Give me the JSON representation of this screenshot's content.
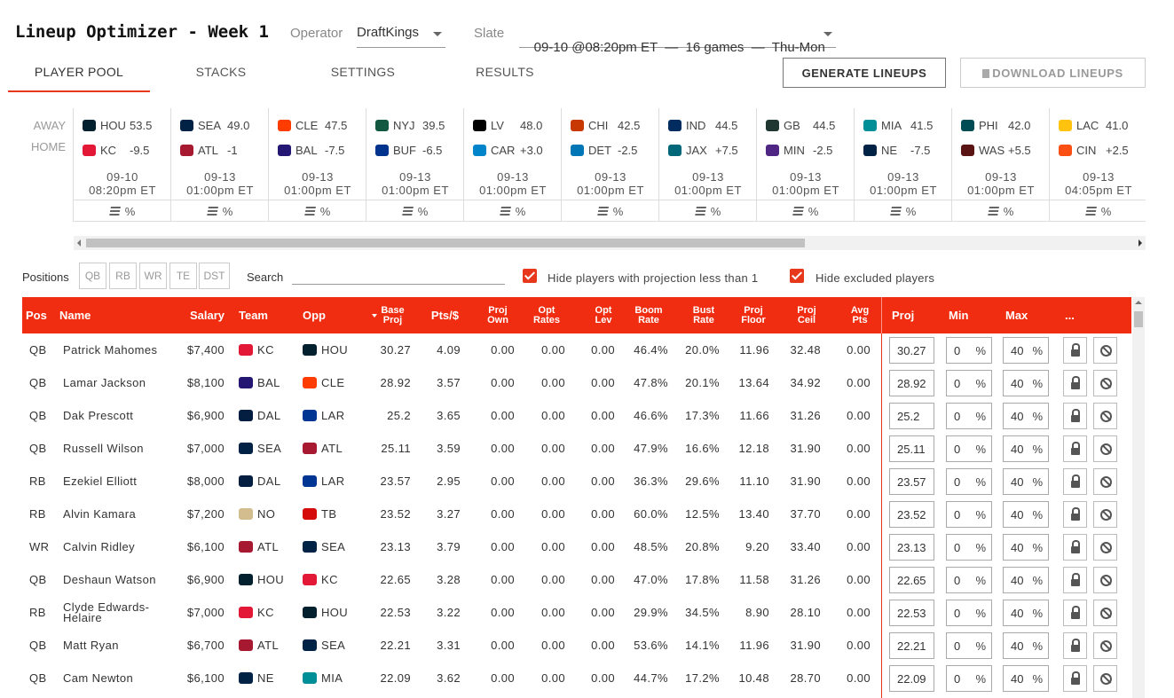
{
  "header": {
    "title": "Lineup Optimizer - Week 1",
    "operator_label": "Operator",
    "operator_value": "DraftKings",
    "slate_label": "Slate",
    "slate_value": "09-10 @08:20pm ET  —  16 games  —  Thu-Mon"
  },
  "tabs": [
    {
      "label": "PLAYER POOL",
      "active": true
    },
    {
      "label": "STACKS"
    },
    {
      "label": "SETTINGS"
    },
    {
      "label": "RESULTS"
    }
  ],
  "actions": {
    "generate": "GENERATE LINEUPS",
    "download": "DOWNLOAD LINEUPS"
  },
  "games_strip": {
    "away_label": "AWAY",
    "home_label": "HOME",
    "games": [
      {
        "away": "HOU",
        "away_val": "53.5",
        "away_color": "#03202f",
        "home": "KC",
        "home_val": "-9.5",
        "home_color": "#e31837",
        "date": "09-10",
        "time": "08:20pm ET",
        "foot": "%"
      },
      {
        "away": "SEA",
        "away_val": "49.0",
        "away_color": "#002244",
        "home": "ATL",
        "home_val": "-1",
        "home_color": "#a71930",
        "date": "09-13",
        "time": "01:00pm ET",
        "foot": "%"
      },
      {
        "away": "CLE",
        "away_val": "47.5",
        "away_color": "#ff3c00",
        "home": "BAL",
        "home_val": "-7.5",
        "home_color": "#241773",
        "date": "09-13",
        "time": "01:00pm ET",
        "foot": "%"
      },
      {
        "away": "NYJ",
        "away_val": "39.5",
        "away_color": "#125740",
        "home": "BUF",
        "home_val": "-6.5",
        "home_color": "#00338d",
        "date": "09-13",
        "time": "01:00pm ET",
        "foot": "%"
      },
      {
        "away": "LV",
        "away_val": "48.0",
        "away_color": "#000000",
        "home": "CAR",
        "home_val": "+3.0",
        "home_color": "#0085ca",
        "date": "09-13",
        "time": "01:00pm ET",
        "foot": "%"
      },
      {
        "away": "CHI",
        "away_val": "42.5",
        "away_color": "#c83803",
        "home": "DET",
        "home_val": "-2.5",
        "home_color": "#0076b6",
        "date": "09-13",
        "time": "01:00pm ET",
        "foot": "%"
      },
      {
        "away": "IND",
        "away_val": "44.5",
        "away_color": "#002c5f",
        "home": "JAX",
        "home_val": "+7.5",
        "home_color": "#006778",
        "date": "09-13",
        "time": "01:00pm ET",
        "foot": "%"
      },
      {
        "away": "GB",
        "away_val": "44.5",
        "away_color": "#203731",
        "home": "MIN",
        "home_val": "-2.5",
        "home_color": "#4f2683",
        "date": "09-13",
        "time": "01:00pm ET",
        "foot": "%"
      },
      {
        "away": "MIA",
        "away_val": "41.5",
        "away_color": "#008e97",
        "home": "NE",
        "home_val": "-7.5",
        "home_color": "#002244",
        "date": "09-13",
        "time": "01:00pm ET",
        "foot": "%"
      },
      {
        "away": "PHI",
        "away_val": "42.0",
        "away_color": "#004c54",
        "home": "WAS",
        "home_val": "+5.5",
        "home_color": "#5a1414",
        "date": "09-13",
        "time": "01:00pm ET",
        "foot": "%"
      },
      {
        "away": "LAC",
        "away_val": "41.0",
        "away_color": "#ffc20e",
        "home": "CIN",
        "home_val": "+2.5",
        "home_color": "#fb4f14",
        "date": "09-13",
        "time": "04:05pm ET",
        "foot": "%"
      }
    ]
  },
  "filters": {
    "positions_label": "Positions",
    "positions": [
      "QB",
      "RB",
      "WR",
      "TE",
      "DST"
    ],
    "search_label": "Search",
    "search_value": "",
    "hide_low_proj_label": "Hide players with projection less than 1",
    "hide_excluded_label": "Hide excluded players"
  },
  "table": {
    "columns": {
      "pos": "Pos",
      "name": "Name",
      "salary": "Salary",
      "team": "Team",
      "opp": "Opp",
      "base_proj": "Base Proj",
      "pts_per_dollar": "Pts/$",
      "proj_own": "Proj Own",
      "opt_rates": "Opt Rates",
      "opt_lev": "Opt Lev",
      "boom_rate": "Boom Rate",
      "bust_rate": "Bust Rate",
      "proj_floor": "Proj Floor",
      "proj_ceil": "Proj Ceil",
      "avg_pts": "Avg Pts",
      "proj": "Proj",
      "min": "Min",
      "max": "Max",
      "more": "..."
    },
    "rows": [
      {
        "pos": "QB",
        "name": "Patrick Mahomes",
        "salary": "$7,400",
        "team": "KC",
        "team_color": "#e31837",
        "opp": "HOU",
        "opp_color": "#03202f",
        "base_proj": "30.27",
        "pts": "4.09",
        "own": "0.00",
        "rates": "0.00",
        "lev": "0.00",
        "boom": "46.4%",
        "bust": "20.0%",
        "floor": "11.96",
        "ceil": "32.48",
        "avg": "0.00",
        "proj": "30.27",
        "min": "0",
        "max": "40"
      },
      {
        "pos": "QB",
        "name": "Lamar Jackson",
        "salary": "$8,100",
        "team": "BAL",
        "team_color": "#241773",
        "opp": "CLE",
        "opp_color": "#ff3c00",
        "base_proj": "28.92",
        "pts": "3.57",
        "own": "0.00",
        "rates": "0.00",
        "lev": "0.00",
        "boom": "47.8%",
        "bust": "20.1%",
        "floor": "13.64",
        "ceil": "34.92",
        "avg": "0.00",
        "proj": "28.92",
        "min": "0",
        "max": "40"
      },
      {
        "pos": "QB",
        "name": "Dak Prescott",
        "salary": "$6,900",
        "team": "DAL",
        "team_color": "#041e42",
        "opp": "LAR",
        "opp_color": "#003594",
        "base_proj": "25.2",
        "pts": "3.65",
        "own": "0.00",
        "rates": "0.00",
        "lev": "0.00",
        "boom": "46.6%",
        "bust": "17.3%",
        "floor": "11.66",
        "ceil": "31.26",
        "avg": "0.00",
        "proj": "25.2",
        "min": "0",
        "max": "40"
      },
      {
        "pos": "QB",
        "name": "Russell Wilson",
        "salary": "$7,000",
        "team": "SEA",
        "team_color": "#002244",
        "opp": "ATL",
        "opp_color": "#a71930",
        "base_proj": "25.11",
        "pts": "3.59",
        "own": "0.00",
        "rates": "0.00",
        "lev": "0.00",
        "boom": "47.9%",
        "bust": "16.6%",
        "floor": "12.18",
        "ceil": "31.90",
        "avg": "0.00",
        "proj": "25.11",
        "min": "0",
        "max": "40"
      },
      {
        "pos": "RB",
        "name": "Ezekiel Elliott",
        "salary": "$8,000",
        "team": "DAL",
        "team_color": "#041e42",
        "opp": "LAR",
        "opp_color": "#003594",
        "base_proj": "23.57",
        "pts": "2.95",
        "own": "0.00",
        "rates": "0.00",
        "lev": "0.00",
        "boom": "36.3%",
        "bust": "29.6%",
        "floor": "11.10",
        "ceil": "31.90",
        "avg": "0.00",
        "proj": "23.57",
        "min": "0",
        "max": "40"
      },
      {
        "pos": "RB",
        "name": "Alvin Kamara",
        "salary": "$7,200",
        "team": "NO",
        "team_color": "#d3bc8d",
        "opp": "TB",
        "opp_color": "#d50a0a",
        "base_proj": "23.52",
        "pts": "3.27",
        "own": "0.00",
        "rates": "0.00",
        "lev": "0.00",
        "boom": "60.0%",
        "bust": "12.5%",
        "floor": "13.40",
        "ceil": "37.70",
        "avg": "0.00",
        "proj": "23.52",
        "min": "0",
        "max": "40"
      },
      {
        "pos": "WR",
        "name": "Calvin Ridley",
        "salary": "$6,100",
        "team": "ATL",
        "team_color": "#a71930",
        "opp": "SEA",
        "opp_color": "#002244",
        "base_proj": "23.13",
        "pts": "3.79",
        "own": "0.00",
        "rates": "0.00",
        "lev": "0.00",
        "boom": "48.5%",
        "bust": "20.8%",
        "floor": "9.20",
        "ceil": "33.40",
        "avg": "0.00",
        "proj": "23.13",
        "min": "0",
        "max": "40"
      },
      {
        "pos": "QB",
        "name": "Deshaun Watson",
        "salary": "$6,900",
        "team": "HOU",
        "team_color": "#03202f",
        "opp": "KC",
        "opp_color": "#e31837",
        "base_proj": "22.65",
        "pts": "3.28",
        "own": "0.00",
        "rates": "0.00",
        "lev": "0.00",
        "boom": "47.0%",
        "bust": "17.8%",
        "floor": "11.58",
        "ceil": "31.26",
        "avg": "0.00",
        "proj": "22.65",
        "min": "0",
        "max": "40"
      },
      {
        "pos": "RB",
        "name": "Clyde Edwards-Helaire",
        "salary": "$7,000",
        "team": "KC",
        "team_color": "#e31837",
        "opp": "HOU",
        "opp_color": "#03202f",
        "base_proj": "22.53",
        "pts": "3.22",
        "own": "0.00",
        "rates": "0.00",
        "lev": "0.00",
        "boom": "29.9%",
        "bust": "34.5%",
        "floor": "8.90",
        "ceil": "28.10",
        "avg": "0.00",
        "proj": "22.53",
        "min": "0",
        "max": "40"
      },
      {
        "pos": "QB",
        "name": "Matt Ryan",
        "salary": "$6,700",
        "team": "ATL",
        "team_color": "#a71930",
        "opp": "SEA",
        "opp_color": "#002244",
        "base_proj": "22.21",
        "pts": "3.31",
        "own": "0.00",
        "rates": "0.00",
        "lev": "0.00",
        "boom": "53.6%",
        "bust": "14.1%",
        "floor": "11.96",
        "ceil": "31.90",
        "avg": "0.00",
        "proj": "22.21",
        "min": "0",
        "max": "40"
      },
      {
        "pos": "QB",
        "name": "Cam Newton",
        "salary": "$6,100",
        "team": "NE",
        "team_color": "#002244",
        "opp": "MIA",
        "opp_color": "#008e97",
        "base_proj": "22.09",
        "pts": "3.62",
        "own": "0.00",
        "rates": "0.00",
        "lev": "0.00",
        "boom": "44.7%",
        "bust": "17.2%",
        "floor": "10.48",
        "ceil": "28.70",
        "avg": "0.00",
        "proj": "22.09",
        "min": "0",
        "max": "40"
      }
    ],
    "percent_symbol": "%"
  },
  "colors": {
    "accent": "#f02d10"
  }
}
